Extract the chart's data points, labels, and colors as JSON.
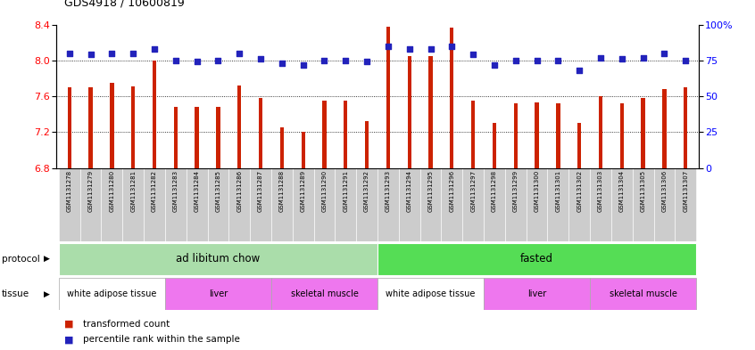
{
  "title": "GDS4918 / 10600819",
  "samples": [
    "GSM1131278",
    "GSM1131279",
    "GSM1131280",
    "GSM1131281",
    "GSM1131282",
    "GSM1131283",
    "GSM1131284",
    "GSM1131285",
    "GSM1131286",
    "GSM1131287",
    "GSM1131288",
    "GSM1131289",
    "GSM1131290",
    "GSM1131291",
    "GSM1131292",
    "GSM1131293",
    "GSM1131294",
    "GSM1131295",
    "GSM1131296",
    "GSM1131297",
    "GSM1131298",
    "GSM1131299",
    "GSM1131300",
    "GSM1131301",
    "GSM1131302",
    "GSM1131303",
    "GSM1131304",
    "GSM1131305",
    "GSM1131306",
    "GSM1131307"
  ],
  "transformed_count": [
    7.7,
    7.7,
    7.75,
    7.71,
    8.0,
    7.48,
    7.48,
    7.48,
    7.72,
    7.58,
    7.25,
    7.2,
    7.55,
    7.55,
    7.32,
    8.38,
    8.05,
    8.05,
    8.37,
    7.55,
    7.3,
    7.52,
    7.53,
    7.52,
    7.3,
    7.6,
    7.52,
    7.58,
    7.68,
    7.7
  ],
  "percentile": [
    80,
    79,
    80,
    80,
    83,
    75,
    74,
    75,
    80,
    76,
    73,
    72,
    75,
    75,
    74,
    85,
    83,
    83,
    85,
    79,
    72,
    75,
    75,
    75,
    68,
    77,
    76,
    77,
    80,
    75
  ],
  "y_min": 6.8,
  "y_max": 8.4,
  "yticks_left": [
    6.8,
    7.2,
    7.6,
    8.0,
    8.4
  ],
  "yticks_right": [
    0,
    25,
    50,
    75,
    100
  ],
  "bar_color": "#CC2200",
  "dot_color": "#2222BB",
  "protocol_groups": [
    {
      "label": "ad libitum chow",
      "start": 0,
      "end": 15,
      "color": "#AADDAA"
    },
    {
      "label": "fasted",
      "start": 15,
      "end": 30,
      "color": "#55DD55"
    }
  ],
  "tissue_groups": [
    {
      "label": "white adipose tissue",
      "start": 0,
      "end": 5,
      "color": "#FFFFFF"
    },
    {
      "label": "liver",
      "start": 5,
      "end": 10,
      "color": "#EE77EE"
    },
    {
      "label": "skeletal muscle",
      "start": 10,
      "end": 15,
      "color": "#EE77EE"
    },
    {
      "label": "white adipose tissue",
      "start": 15,
      "end": 20,
      "color": "#FFFFFF"
    },
    {
      "label": "liver",
      "start": 20,
      "end": 25,
      "color": "#EE77EE"
    },
    {
      "label": "skeletal muscle",
      "start": 25,
      "end": 30,
      "color": "#EE77EE"
    }
  ]
}
